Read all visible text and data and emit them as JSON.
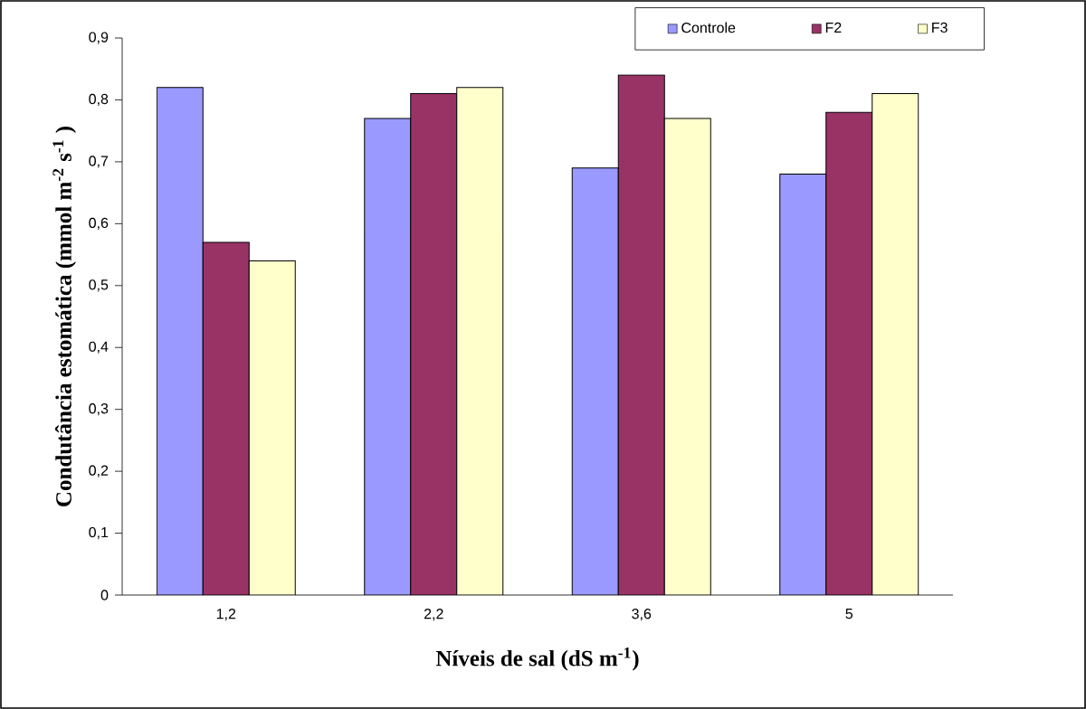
{
  "chart_data": {
    "type": "bar",
    "xlabel": "Níveis de sal (dS m$^{-1}$)",
    "ylabel": "Condutância estomática (mmol m$^{-2}$ s$^{-1}$ )",
    "categories": [
      "1,2",
      "2,2",
      "3,6",
      "5"
    ],
    "series": [
      {
        "name": "Controle",
        "color": "#9999ff",
        "values": [
          0.82,
          0.77,
          0.69,
          0.68
        ]
      },
      {
        "name": "F2",
        "color": "#993366",
        "values": [
          0.57,
          0.81,
          0.84,
          0.78
        ]
      },
      {
        "name": "F3",
        "color": "#ffffcc",
        "values": [
          0.54,
          0.82,
          0.77,
          0.81
        ]
      }
    ],
    "ylim": [
      0,
      0.9
    ],
    "yticks": [
      0,
      {
        "value": 0.1,
        "label": "0,1"
      },
      {
        "value": 0.2,
        "label": "0,2"
      },
      {
        "value": 0.3,
        "label": "0,3"
      },
      {
        "value": 0.4,
        "label": "0,4"
      },
      {
        "value": 0.5,
        "label": "0,5"
      },
      {
        "value": 0.6,
        "label": "0,6"
      },
      {
        "value": 0.7,
        "label": "0,7"
      },
      {
        "value": 0.8,
        "label": "0,8"
      },
      {
        "value": 0.9,
        "label": "0,9"
      }
    ],
    "legend": "top right",
    "grid": false
  }
}
